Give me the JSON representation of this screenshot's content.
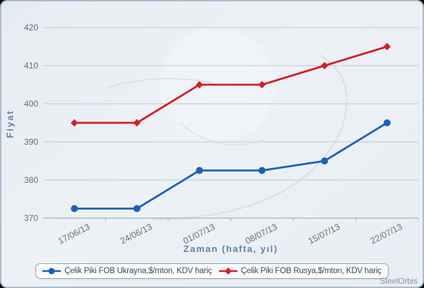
{
  "watermark": "SteelOrbis",
  "chart_data": {
    "type": "line",
    "x": [
      "17/06/13",
      "24/06/13",
      "01/07/13",
      "08/07/13",
      "15/07/13",
      "22/07/13"
    ],
    "series": [
      {
        "name": "Çelik Piki FOB Ukrayna,$/mton, KDV hariç",
        "color": "#1b62b5",
        "marker": "circle",
        "values": [
          372.5,
          372.5,
          382.5,
          382.5,
          385,
          395
        ]
      },
      {
        "name": "Çelik Piki FOB Rusya,$/mton, KDV hariç",
        "color": "#d11f26",
        "marker": "diamond",
        "values": [
          395,
          395,
          405,
          405,
          410,
          415
        ]
      }
    ],
    "xlabel": "Zaman (hafta, yıl)",
    "ylabel": "Fiyat",
    "yticks": [
      370,
      380,
      390,
      400,
      410,
      420
    ],
    "ylim": [
      370,
      422.5
    ],
    "grid": true,
    "legend_position": "bottom"
  }
}
